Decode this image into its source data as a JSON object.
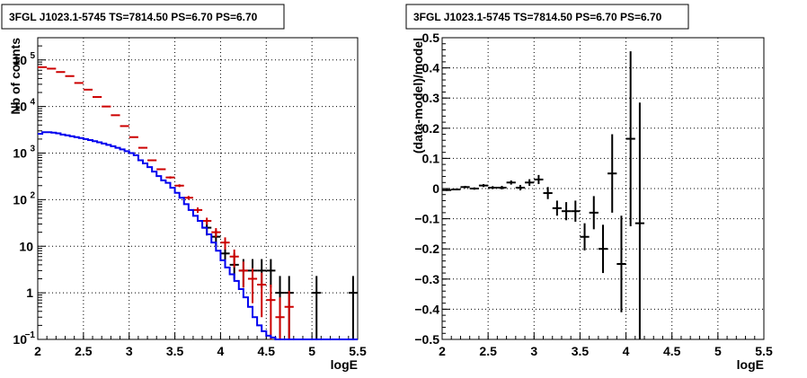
{
  "chart_data": [
    {
      "type": "line",
      "title": "3FGL J1023.1-5745 TS=7814.50 PS=6.70 PS=6.70",
      "xlabel": "logE",
      "ylabel": "Nb of counts",
      "xlim": [
        2,
        5.5
      ],
      "ylim": [
        0.1,
        300000
      ],
      "yscale": "log",
      "grid": true,
      "x_ticks": [
        "2",
        "2.5",
        "3",
        "3.5",
        "4",
        "4.5",
        "5",
        "5.5"
      ],
      "y_ticks": [
        {
          "value": 0.1,
          "label": "10",
          "sup": "−1"
        },
        {
          "value": 1,
          "label": "1",
          "sup": ""
        },
        {
          "value": 10,
          "label": "10",
          "sup": ""
        },
        {
          "value": 100,
          "label": "10",
          "sup": "2"
        },
        {
          "value": 1000,
          "label": "10",
          "sup": "3"
        },
        {
          "value": 10000,
          "label": "10",
          "sup": "4"
        },
        {
          "value": 100000,
          "label": "10",
          "sup": "5"
        }
      ],
      "series": [
        {
          "color": "#000000",
          "style": "errorbar",
          "x": [
            3.85,
            3.95,
            4.05,
            4.15,
            4.25,
            4.35,
            4.45,
            4.55,
            4.65,
            4.75,
            5.05,
            5.45
          ],
          "y": [
            25,
            16,
            7,
            4,
            3,
            3,
            3,
            3,
            1,
            1,
            1,
            1
          ],
          "err_low": [
            8,
            6,
            3,
            2,
            1.7,
            1.7,
            1.7,
            1.7,
            0.9,
            0.9,
            0.9,
            0.9
          ],
          "err_high": [
            8,
            6,
            4,
            3,
            2.3,
            2.3,
            2.3,
            2.3,
            1.3,
            1.3,
            1.3,
            1.3
          ]
        },
        {
          "color": "#cc0000",
          "style": "errorbar",
          "x": [
            2.05,
            2.15,
            2.25,
            2.35,
            2.45,
            2.55,
            2.65,
            2.75,
            2.85,
            2.95,
            3.05,
            3.15,
            3.25,
            3.35,
            3.45,
            3.55,
            3.65,
            3.75,
            3.85,
            3.95,
            4.05,
            4.15,
            4.25,
            4.35,
            4.45,
            4.55,
            4.65,
            4.75
          ],
          "y": [
            70000,
            65000,
            55000,
            45000,
            32000,
            23000,
            16000,
            10000,
            6500,
            3800,
            2200,
            1300,
            700,
            450,
            300,
            200,
            110,
            60,
            35,
            20,
            12,
            6,
            3,
            2,
            1.5,
            0.7,
            0.3,
            0.5
          ],
          "err_low": [
            300,
            300,
            300,
            250,
            200,
            150,
            120,
            100,
            80,
            60,
            45,
            35,
            25,
            20,
            17,
            14,
            10,
            8,
            6,
            4.5,
            3.5,
            2.5,
            1.7,
            1.4,
            1.2,
            0.6,
            0.25,
            0.4
          ],
          "err_high": [
            300,
            300,
            300,
            250,
            200,
            150,
            120,
            100,
            80,
            60,
            45,
            35,
            25,
            20,
            17,
            14,
            10,
            8,
            6,
            4.5,
            3.5,
            2.5,
            1.7,
            1.4,
            1.2,
            0.8,
            0.5,
            0.6
          ]
        },
        {
          "color": "#0000ee",
          "style": "step",
          "x": [
            2.0,
            2.05,
            2.1,
            2.15,
            2.2,
            2.25,
            2.3,
            2.35,
            2.4,
            2.45,
            2.5,
            2.55,
            2.6,
            2.65,
            2.7,
            2.75,
            2.8,
            2.85,
            2.9,
            2.95,
            3.0,
            3.05,
            3.1,
            3.15,
            3.2,
            3.25,
            3.3,
            3.35,
            3.4,
            3.45,
            3.5,
            3.55,
            3.6,
            3.65,
            3.7,
            3.75,
            3.8,
            3.85,
            3.9,
            3.95,
            4.0,
            4.05,
            4.1,
            4.15,
            4.2,
            4.25,
            4.3,
            4.35,
            4.4,
            4.45,
            4.5,
            4.55,
            4.6,
            4.65,
            4.7,
            4.75,
            4.8,
            4.85,
            4.9,
            4.95,
            5.0,
            5.05,
            5.1,
            5.15,
            5.2,
            5.25,
            5.3,
            5.35,
            5.4,
            5.45
          ],
          "y": [
            2600,
            2800,
            2800,
            2750,
            2650,
            2500,
            2400,
            2300,
            2200,
            2100,
            2000,
            1900,
            1800,
            1700,
            1600,
            1500,
            1400,
            1300,
            1200,
            1100,
            1000,
            900,
            700,
            600,
            500,
            400,
            320,
            260,
            230,
            180,
            140,
            110,
            80,
            60,
            45,
            35,
            25,
            18,
            12,
            8,
            5,
            3.5,
            2.5,
            1.8,
            1.2,
            0.8,
            0.5,
            0.3,
            0.2,
            0.15,
            0.12,
            0.11,
            0.1,
            0.1,
            0.1,
            0.1,
            0.1,
            0.1,
            0.1,
            0.1,
            0.1,
            0.1,
            0.1,
            0.1,
            0.1,
            0.1,
            0.1,
            0.1,
            0.1,
            0.1
          ]
        }
      ]
    },
    {
      "type": "scatter",
      "title": "3FGL J1023.1-5745 TS=7814.50 PS=6.70 PS=6.70",
      "xlabel": "logE",
      "ylabel": "(data-model)/model",
      "xlim": [
        2,
        5.5
      ],
      "ylim": [
        -0.5,
        0.5
      ],
      "grid": true,
      "x_ticks": [
        "2",
        "2.5",
        "3",
        "3.5",
        "4",
        "4.5",
        "5",
        "5.5"
      ],
      "y_ticks": [
        "0.5",
        "0.4",
        "0.3",
        "0.2",
        "0.1",
        "0",
        "−0.1",
        "−0.2",
        "−0.3",
        "−0.4",
        "−0.5"
      ],
      "series": [
        {
          "color": "#000000",
          "style": "errorbar",
          "x": [
            2.05,
            2.15,
            2.25,
            2.35,
            2.45,
            2.55,
            2.65,
            2.75,
            2.85,
            2.95,
            3.05,
            3.15,
            3.25,
            3.35,
            3.45,
            3.55,
            3.65,
            3.75,
            3.85,
            3.95,
            4.05,
            4.15
          ],
          "y": [
            -0.005,
            -0.003,
            0.005,
            0.0,
            0.01,
            0.003,
            0.003,
            0.02,
            0.003,
            0.02,
            0.03,
            -0.015,
            -0.065,
            -0.075,
            -0.075,
            -0.16,
            -0.08,
            -0.2,
            0.05,
            -0.25,
            0.165,
            -0.115
          ],
          "err": [
            0.003,
            0.003,
            0.004,
            0.004,
            0.005,
            0.005,
            0.006,
            0.007,
            0.009,
            0.011,
            0.015,
            0.02,
            0.025,
            0.03,
            0.035,
            0.045,
            0.055,
            0.08,
            0.13,
            0.16,
            0.29,
            0.4
          ]
        }
      ]
    }
  ]
}
